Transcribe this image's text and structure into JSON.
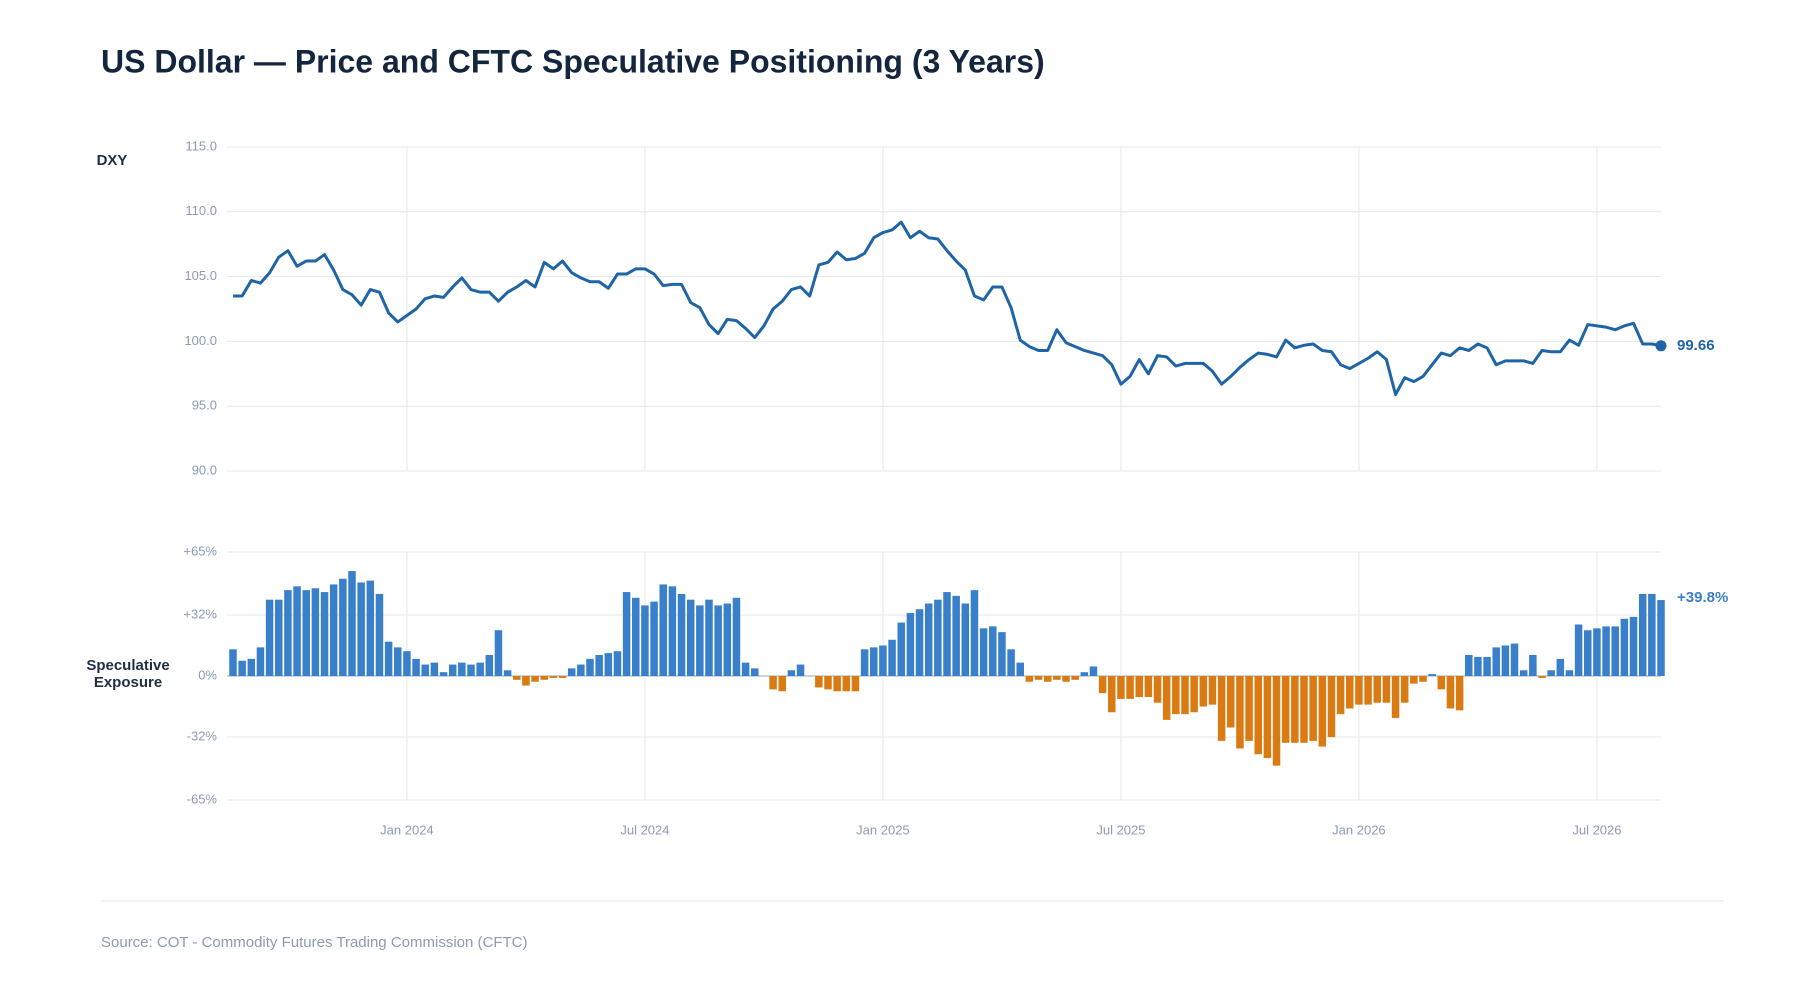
{
  "header": {
    "title": "US Dollar — Price and CFTC Speculative Positioning (3 Years)"
  },
  "footer": {
    "source": "Source: COT - Commodity Futures Trading Commission (CFTC)"
  },
  "chart_data": [
    {
      "type": "line",
      "y_label": "DXY",
      "color": "#1f65a6",
      "ylim": [
        90,
        115
      ],
      "yticks": [
        {
          "value": 90,
          "label": "90.0"
        },
        {
          "value": 95,
          "label": "95.0"
        },
        {
          "value": 100,
          "label": "100.0"
        },
        {
          "value": 105,
          "label": "105.0"
        },
        {
          "value": 110,
          "label": "110.0"
        },
        {
          "value": 115,
          "label": "115.0"
        }
      ],
      "grid": true,
      "values": [
        103.5,
        103.5,
        104.7,
        104.5,
        105.3,
        106.5,
        107,
        105.8,
        106.2,
        106.2,
        106.7,
        105.5,
        104,
        103.6,
        102.8,
        104,
        103.8,
        102.2,
        101.5,
        102,
        102.5,
        103.3,
        103.5,
        103.4,
        104.2,
        104.9,
        104,
        103.8,
        103.8,
        103.1,
        103.8,
        104.2,
        104.7,
        104.2,
        106.1,
        105.6,
        106.2,
        105.3,
        104.9,
        104.6,
        104.6,
        104.1,
        105.2,
        105.2,
        105.6,
        105.6,
        105.2,
        104.3,
        104.4,
        104.4,
        103,
        102.6,
        101.3,
        100.6,
        101.7,
        101.6,
        101,
        100.3,
        101.2,
        102.5,
        103.1,
        104,
        104.2,
        103.5,
        105.9,
        106.1,
        106.9,
        106.3,
        106.4,
        106.8,
        108,
        108.4,
        108.6,
        109.2,
        108,
        108.5,
        108,
        107.9,
        107,
        106.2,
        105.5,
        103.5,
        103.2,
        104.2,
        104.2,
        102.6,
        100.1,
        99.6,
        99.3,
        99.3,
        100.9,
        99.9,
        99.6,
        99.3,
        99.1,
        98.9,
        98.2,
        96.7,
        97.3,
        98.6,
        97.5,
        98.9,
        98.8,
        98.1,
        98.3,
        98.3,
        98.3,
        97.7,
        96.7,
        97.3,
        98,
        98.6,
        99.1,
        99,
        98.8,
        100.1,
        99.5,
        99.7,
        99.8,
        99.3,
        99.2,
        98.2,
        97.9,
        98.3,
        98.7,
        99.2,
        98.6,
        95.9,
        97.2,
        96.9,
        97.3,
        98.2,
        99.1,
        98.9,
        99.5,
        99.3,
        99.8,
        99.5,
        98.2,
        98.5,
        98.5,
        98.5,
        98.3,
        99.3,
        99.2,
        99.2,
        100.1,
        99.7,
        101.3,
        101.2,
        101.1,
        100.9,
        101.2,
        101.4,
        99.8,
        99.8,
        99.66
      ]
    },
    {
      "type": "bar",
      "y_label": "Speculative Exposure",
      "positive_color": "#3a7fca",
      "negative_color": "#d97a12",
      "ylim": [
        -65,
        65
      ],
      "yticks": [
        {
          "value": -65,
          "label": "-65%"
        },
        {
          "value": -32,
          "label": "-32%"
        },
        {
          "value": 0,
          "label": "0%"
        },
        {
          "value": 32,
          "label": "+32%"
        },
        {
          "value": 65,
          "label": "+65%"
        }
      ],
      "grid": true,
      "categories": [
        null,
        null,
        null,
        null,
        null,
        null,
        null,
        null,
        null,
        null,
        null,
        null,
        null,
        null,
        null,
        null,
        null,
        null,
        null,
        "Jan 2024",
        null,
        null,
        null,
        null,
        null,
        null,
        null,
        null,
        null,
        null,
        null,
        null,
        null,
        null,
        null,
        null,
        null,
        null,
        null,
        null,
        null,
        null,
        null,
        null,
        null,
        "Jul 2024",
        null,
        null,
        null,
        null,
        null,
        null,
        null,
        null,
        null,
        null,
        null,
        null,
        null,
        null,
        null,
        null,
        null,
        null,
        null,
        null,
        null,
        null,
        null,
        null,
        null,
        "Jan 2025",
        null,
        null,
        null,
        null,
        null,
        null,
        null,
        null,
        null,
        null,
        null,
        null,
        null,
        null,
        null,
        null,
        null,
        null,
        null,
        null,
        null,
        null,
        null,
        null,
        null,
        "Jul 2025",
        null,
        null,
        null,
        null,
        null,
        null,
        null,
        null,
        null,
        null,
        null,
        null,
        null,
        null,
        null,
        null,
        null,
        null,
        null,
        null,
        null,
        null,
        null,
        null,
        null,
        "Jan 2026",
        null,
        null,
        null,
        null,
        null,
        null,
        null,
        null,
        null,
        null,
        null,
        null,
        null,
        null,
        null,
        null,
        null,
        null,
        null,
        null,
        null,
        null,
        null,
        null,
        null,
        "Jul 2026",
        null,
        null,
        null,
        null,
        null,
        null,
        null
      ],
      "values": [
        14,
        8,
        9,
        15,
        40,
        40,
        45,
        47,
        45,
        46,
        44,
        48,
        51,
        55,
        49,
        50,
        43,
        18,
        15,
        13,
        9,
        6,
        7,
        2,
        6,
        7,
        6,
        7,
        11,
        24,
        3,
        -2,
        -5,
        -3,
        -2,
        -1,
        -1,
        4,
        6,
        9,
        11,
        12,
        13,
        44,
        41,
        37,
        39,
        48,
        47,
        43,
        40,
        37,
        40,
        37,
        38,
        41,
        7,
        4,
        0,
        -7,
        -8,
        3,
        6,
        0,
        -6,
        -7,
        -8,
        -8,
        -8,
        14,
        15,
        16,
        19,
        28,
        33,
        35,
        38,
        40,
        44,
        42,
        38,
        45,
        25,
        26,
        23,
        14,
        7,
        -3,
        -2,
        -3,
        -2,
        -3,
        -2,
        2,
        5,
        -9,
        -19,
        -12,
        -12,
        -11,
        -11,
        -14,
        -23,
        -20,
        -20,
        -19,
        -16,
        -15,
        -34,
        -27,
        -38,
        -34,
        -41,
        -43,
        -47,
        -35,
        -35,
        -35,
        -34,
        -37,
        -32,
        -20,
        -17,
        -15,
        -15,
        -14,
        -14,
        -22,
        -14,
        -4,
        -3,
        1,
        -7,
        -17,
        -18,
        11,
        10,
        10,
        15,
        16,
        17,
        3,
        11,
        -1,
        3,
        9,
        3,
        27,
        24,
        25,
        26,
        26,
        30,
        31,
        43,
        43,
        39.8
      ],
      "value_labels": {
        "156": "+39.8%"
      }
    }
  ]
}
